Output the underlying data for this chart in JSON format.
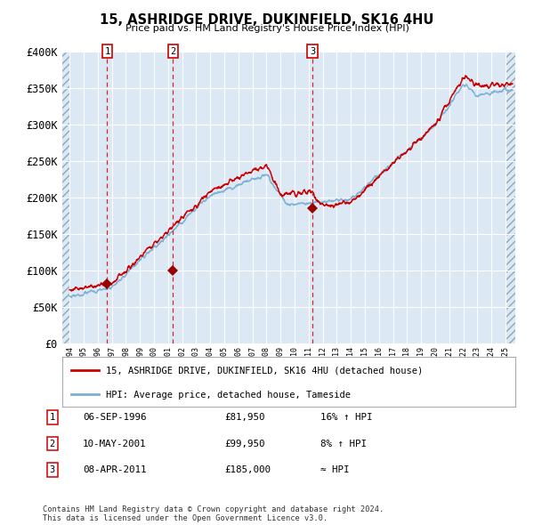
{
  "title": "15, ASHRIDGE DRIVE, DUKINFIELD, SK16 4HU",
  "subtitle": "Price paid vs. HM Land Registry's House Price Index (HPI)",
  "background_color": "#dce9f5",
  "grid_color": "#ffffff",
  "red_line_color": "#cc0000",
  "blue_line_color": "#7aafd4",
  "marker_color": "#990000",
  "sale_dates": [
    1996.68,
    2001.36,
    2011.27
  ],
  "sale_prices": [
    81950,
    99950,
    185000
  ],
  "sale_labels": [
    "1",
    "2",
    "3"
  ],
  "annotation_rows": [
    [
      "1",
      "06-SEP-1996",
      "£81,950",
      "16% ↑ HPI"
    ],
    [
      "2",
      "10-MAY-2001",
      "£99,950",
      "8% ↑ HPI"
    ],
    [
      "3",
      "08-APR-2011",
      "£185,000",
      "≈ HPI"
    ]
  ],
  "legend_entries": [
    "15, ASHRIDGE DRIVE, DUKINFIELD, SK16 4HU (detached house)",
    "HPI: Average price, detached house, Tameside"
  ],
  "footnote": "Contains HM Land Registry data © Crown copyright and database right 2024.\nThis data is licensed under the Open Government Licence v3.0.",
  "ylim": [
    0,
    400000
  ],
  "yticks": [
    0,
    50000,
    100000,
    150000,
    200000,
    250000,
    300000,
    350000,
    400000
  ],
  "ytick_labels": [
    "£0",
    "£50K",
    "£100K",
    "£150K",
    "£200K",
    "£250K",
    "£300K",
    "£350K",
    "£400K"
  ],
  "xlim_start": 1993.5,
  "xlim_end": 2025.7,
  "data_start_year": 1994,
  "data_end_year": 2025
}
